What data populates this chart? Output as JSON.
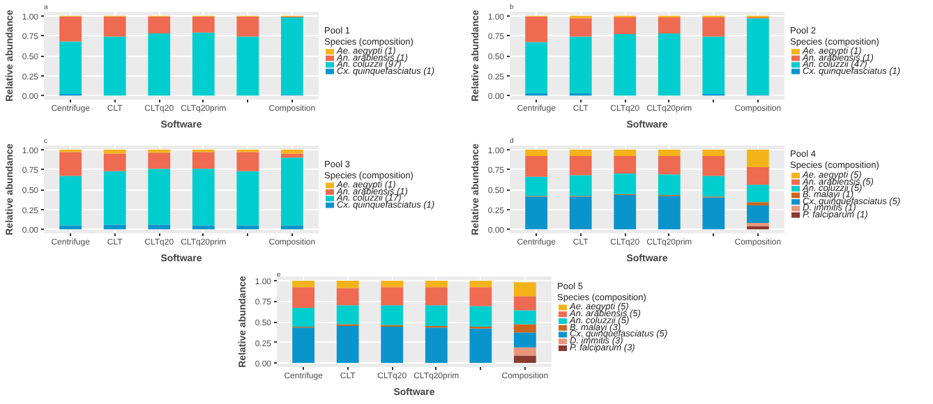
{
  "chart_data": [
    {
      "type": "bar",
      "stacked": true,
      "annotations": [
        "a"
      ],
      "xlabel": "Software",
      "ylabel": "Relative abundance",
      "legend_title": "Pool 1\n Species (composition)",
      "legend": "right",
      "grid": true,
      "categories": [
        "Centrifuge",
        "CLT",
        "CLTq20",
        "CLTq20prim",
        null,
        "Composition"
      ],
      "ylim": [
        -0.05,
        1.05
      ],
      "yticks": [
        {
          "value": 0,
          "label": "0.00"
        },
        {
          "value": 0.25,
          "label": "0.25"
        },
        {
          "value": 0.5,
          "label": "0.50"
        },
        {
          "value": 0.75,
          "label": "0.75"
        },
        {
          "value": 1,
          "label": "1.00"
        }
      ],
      "series": [
        {
          "name": "Cx. quinquefasciatus (1)",
          "color": "#0a94cc",
          "values": [
            0.02,
            0,
            0,
            0,
            0,
            0.01
          ]
        },
        {
          "name": "An. coluzzii (97)",
          "color": "#00cdcd",
          "values": [
            0.66,
            0.74,
            0.78,
            0.79,
            0.74,
            0.97
          ]
        },
        {
          "name": "An. arabiensis (1)",
          "color": "#ee6a50",
          "values": [
            0.31,
            0.25,
            0.21,
            0.2,
            0.25,
            0.01
          ]
        },
        {
          "name": "Ae. aegypti (1)",
          "color": "#f5b31a",
          "values": [
            0.01,
            0.01,
            0.01,
            0.01,
            0.01,
            0.01
          ]
        }
      ]
    },
    {
      "type": "bar",
      "stacked": true,
      "annotations": [
        "b"
      ],
      "xlabel": "Software",
      "ylabel": "Relative abundance",
      "legend_title": "Pool 2\n Species (composition)",
      "legend": "right",
      "grid": true,
      "categories": [
        "Centrifuge",
        "CLT",
        "CLTq20",
        "CLTq20prim",
        null,
        "Composition"
      ],
      "ylim": [
        -0.05,
        1.05
      ],
      "yticks": [
        {
          "value": 0,
          "label": "0.00"
        },
        {
          "value": 0.25,
          "label": "0.25"
        },
        {
          "value": 0.5,
          "label": "0.50"
        },
        {
          "value": 0.75,
          "label": "0.75"
        },
        {
          "value": 1,
          "label": "1.00"
        }
      ],
      "series": [
        {
          "name": "Cx. quinquefasciatus (1)",
          "color": "#0a94cc",
          "values": [
            0.03,
            0.03,
            0,
            0,
            0.02,
            0.01
          ]
        },
        {
          "name": "An. coluzzii (47)",
          "color": "#00cdcd",
          "values": [
            0.64,
            0.71,
            0.77,
            0.78,
            0.72,
            0.96
          ]
        },
        {
          "name": "An. arabiensis (1)",
          "color": "#ee6a50",
          "values": [
            0.32,
            0.23,
            0.21,
            0.2,
            0.24,
            0.01
          ]
        },
        {
          "name": "Ae. aegypti (1)",
          "color": "#f5b31a",
          "values": [
            0.01,
            0.03,
            0.02,
            0.02,
            0.02,
            0.02
          ]
        }
      ]
    },
    {
      "type": "bar",
      "stacked": true,
      "annotations": [
        "c"
      ],
      "xlabel": "Software",
      "ylabel": "Relative abundance",
      "legend_title": "Pool 3\n Species (composition)",
      "legend": "right",
      "grid": true,
      "categories": [
        "Centrifuge",
        "CLT",
        "CLTq20",
        "CLTq20prim",
        null,
        "Composition"
      ],
      "ylim": [
        -0.05,
        1.05
      ],
      "yticks": [
        {
          "value": 0,
          "label": "0.00"
        },
        {
          "value": 0.25,
          "label": "0.25"
        },
        {
          "value": 0.5,
          "label": "0.50"
        },
        {
          "value": 0.75,
          "label": "0.75"
        },
        {
          "value": 1,
          "label": "1.00"
        }
      ],
      "series": [
        {
          "name": "Cx. quinquefasciatus (1)",
          "color": "#0a94cc",
          "values": [
            0.05,
            0.06,
            0.06,
            0.05,
            0.05,
            0.05
          ]
        },
        {
          "name": "An. coluzzii (17)",
          "color": "#00cdcd",
          "values": [
            0.62,
            0.67,
            0.7,
            0.71,
            0.68,
            0.85
          ]
        },
        {
          "name": "An. arabiensis (1)",
          "color": "#ee6a50",
          "values": [
            0.3,
            0.22,
            0.2,
            0.21,
            0.24,
            0.05
          ]
        },
        {
          "name": "Ae. aegypti (1)",
          "color": "#f5b31a",
          "values": [
            0.03,
            0.05,
            0.04,
            0.03,
            0.03,
            0.05
          ]
        }
      ]
    },
    {
      "type": "bar",
      "stacked": true,
      "annotations": [
        "d"
      ],
      "xlabel": "Software",
      "ylabel": "Relative abundance",
      "legend_title": "Pool 4\n Species (composition)",
      "legend": "right",
      "grid": true,
      "categories": [
        "Centrifuge",
        "CLT",
        "CLTq20",
        "CLTq20prim",
        null,
        "Composition"
      ],
      "ylim": [
        -0.05,
        1.05
      ],
      "yticks": [
        {
          "value": 0,
          "label": "0.00"
        },
        {
          "value": 0.25,
          "label": "0.25"
        },
        {
          "value": 0.5,
          "label": "0.50"
        },
        {
          "value": 0.75,
          "label": "0.75"
        },
        {
          "value": 1,
          "label": "1.00"
        }
      ],
      "series": [
        {
          "name": "P. falciparum (1)",
          "color": "#8b3a2f",
          "values": [
            0,
            0,
            0,
            0,
            0,
            0.04
          ]
        },
        {
          "name": "D. immitis (1)",
          "color": "#e8957a",
          "values": [
            0,
            0,
            0,
            0,
            0,
            0.04
          ]
        },
        {
          "name": "Cx. quinquefasciatus (5)",
          "color": "#0a94cc",
          "values": [
            0.41,
            0.41,
            0.43,
            0.42,
            0.4,
            0.22
          ]
        },
        {
          "name": "B. malayi (1)",
          "color": "#cd661d",
          "values": [
            0.01,
            0.01,
            0.01,
            0.01,
            0.01,
            0.04
          ]
        },
        {
          "name": "An. coluzzii (5)",
          "color": "#00cdcd",
          "values": [
            0.24,
            0.26,
            0.26,
            0.26,
            0.26,
            0.22
          ]
        },
        {
          "name": "An. arabiensis (5)",
          "color": "#ee6a50",
          "values": [
            0.26,
            0.24,
            0.22,
            0.23,
            0.25,
            0.22
          ]
        },
        {
          "name": "Ae. aegypti (5)",
          "color": "#f5b31a",
          "values": [
            0.08,
            0.08,
            0.08,
            0.08,
            0.08,
            0.22
          ]
        }
      ]
    },
    {
      "type": "bar",
      "stacked": true,
      "annotations": [
        "e"
      ],
      "xlabel": "Software",
      "ylabel": "Relative abundance",
      "legend_title": "Pool 5\n Species (composition)",
      "legend": "right",
      "grid": true,
      "categories": [
        "Centrifuge",
        "CLT",
        "CLTq20",
        "CLTq20prim",
        null,
        "Composition"
      ],
      "ylim": [
        -0.05,
        1.05
      ],
      "yticks": [
        {
          "value": 0,
          "label": "0.00"
        },
        {
          "value": 0.25,
          "label": "0.25"
        },
        {
          "value": 0.5,
          "label": "0.50"
        },
        {
          "value": 0.75,
          "label": "0.75"
        },
        {
          "value": 1,
          "label": "1.00"
        }
      ],
      "series": [
        {
          "name": "P. falciparum (3)",
          "color": "#8b3a2f",
          "values": [
            0,
            0,
            0,
            0,
            0,
            0.09
          ]
        },
        {
          "name": "D. immitis (3)",
          "color": "#e8957a",
          "values": [
            0,
            0,
            0,
            0,
            0,
            0.1
          ]
        },
        {
          "name": "Cx. quinquefasciatus (5)",
          "color": "#0a94cc",
          "values": [
            0.43,
            0.45,
            0.44,
            0.43,
            0.42,
            0.18
          ]
        },
        {
          "name": "B. malayi (3)",
          "color": "#cd661d",
          "values": [
            0.01,
            0.02,
            0.02,
            0.02,
            0.02,
            0.1
          ]
        },
        {
          "name": "An. coluzzii (5)",
          "color": "#00cdcd",
          "values": [
            0.23,
            0.23,
            0.24,
            0.25,
            0.25,
            0.17
          ]
        },
        {
          "name": "An. arabiensis (5)",
          "color": "#ee6a50",
          "values": [
            0.25,
            0.21,
            0.22,
            0.22,
            0.23,
            0.17
          ]
        },
        {
          "name": "Ae. aegypti (5)",
          "color": "#f5b31a",
          "values": [
            0.08,
            0.09,
            0.08,
            0.08,
            0.08,
            0.17
          ]
        }
      ]
    }
  ]
}
